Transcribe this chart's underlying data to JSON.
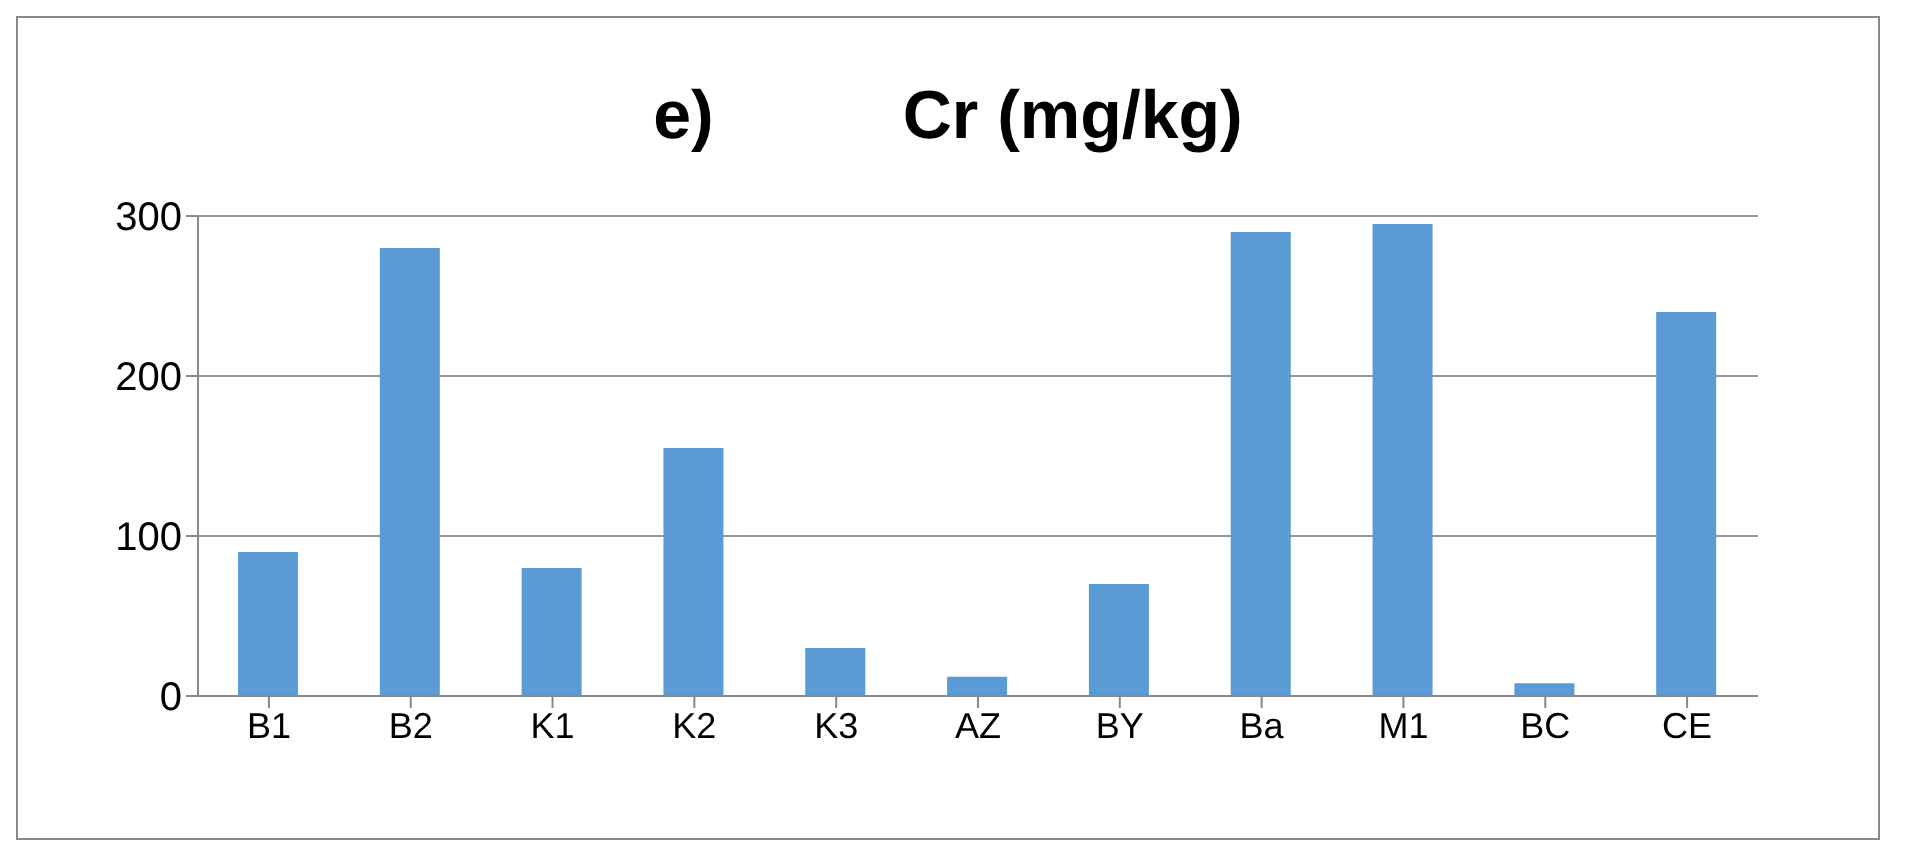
{
  "chart_data": {
    "type": "bar",
    "title": "e)          Cr (mg/kg)",
    "categories": [
      "B1",
      "B2",
      "K1",
      "K2",
      "K3",
      "AZ",
      "BY",
      "Ba",
      "M1",
      "BC",
      "CE"
    ],
    "values": [
      90,
      280,
      80,
      155,
      30,
      12,
      70,
      290,
      295,
      8,
      240
    ],
    "color": "#5b9bd5",
    "ylim": [
      0,
      300
    ],
    "yticks": [
      0,
      100,
      200,
      300
    ],
    "grid": "y"
  }
}
